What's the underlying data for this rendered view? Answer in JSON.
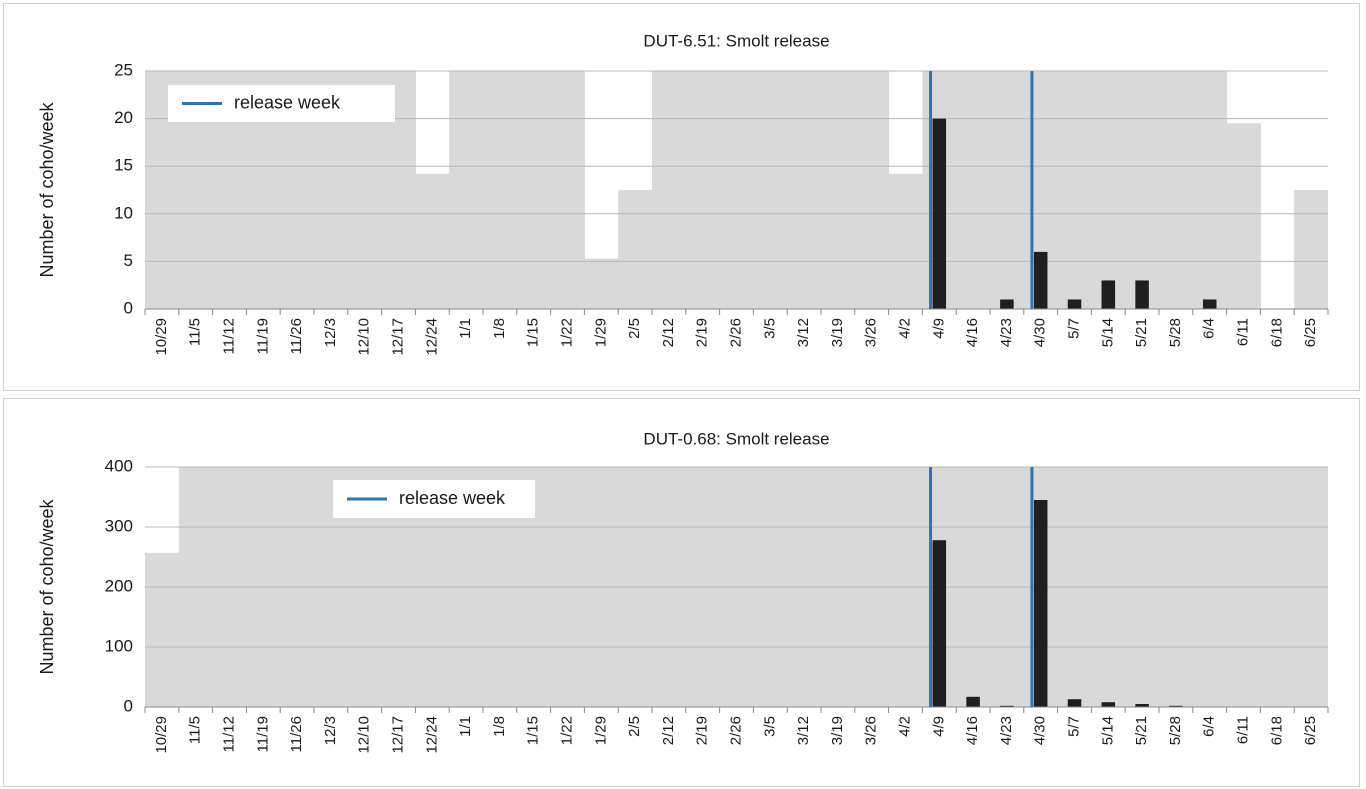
{
  "chart_data": [
    {
      "type": "bar",
      "title": "DUT-6.51: Smolt release",
      "y_label": "Number of coho/week",
      "categories": [
        "10/29",
        "11/5",
        "11/12",
        "11/19",
        "11/26",
        "12/3",
        "12/10",
        "12/17",
        "12/24",
        "1/1",
        "1/8",
        "1/15",
        "1/22",
        "1/29",
        "2/5",
        "2/12",
        "2/19",
        "2/26",
        "3/5",
        "3/12",
        "3/19",
        "3/26",
        "4/2",
        "4/9",
        "4/16",
        "4/23",
        "4/30",
        "5/7",
        "5/14",
        "5/21",
        "5/28",
        "6/4",
        "6/11",
        "6/18",
        "6/25"
      ],
      "series": [
        {
          "color": "#d9d9d9",
          "values": [
            25,
            25,
            25,
            25,
            25,
            25,
            25,
            25,
            14.2,
            25,
            25,
            25,
            25,
            5.3,
            12.5,
            25,
            25,
            25,
            25,
            25,
            25,
            25,
            14.2,
            25,
            25,
            25,
            25,
            25,
            25,
            25,
            25,
            25,
            19.5,
            0,
            12.5
          ]
        },
        {
          "color": "#1f1f1f",
          "values": [
            0,
            0,
            0,
            0,
            0,
            0,
            0,
            0,
            0,
            0,
            0,
            0,
            0,
            0,
            0,
            0,
            0,
            0,
            0,
            0,
            0,
            0,
            0,
            20,
            0,
            1,
            6,
            1,
            3,
            3,
            0,
            1,
            0,
            0,
            0
          ]
        }
      ],
      "release_line": {
        "name": "release week",
        "color": "#2e75b6",
        "categories": [
          "4/9",
          "4/30"
        ]
      },
      "ylim": [
        0,
        25
      ],
      "yticks": [
        0,
        5,
        10,
        15,
        20,
        25
      ],
      "grid": true,
      "legend": "upper left"
    },
    {
      "type": "bar",
      "title": "DUT-0.68: Smolt release",
      "y_label": "Number of coho/week",
      "categories": [
        "10/29",
        "11/5",
        "11/12",
        "11/19",
        "11/26",
        "12/3",
        "12/10",
        "12/17",
        "12/24",
        "1/1",
        "1/8",
        "1/15",
        "1/22",
        "1/29",
        "2/5",
        "2/12",
        "2/19",
        "2/26",
        "3/5",
        "3/12",
        "3/19",
        "3/26",
        "4/2",
        "4/9",
        "4/16",
        "4/23",
        "4/30",
        "5/7",
        "5/14",
        "5/21",
        "5/28",
        "6/4",
        "6/11",
        "6/18",
        "6/25"
      ],
      "series": [
        {
          "color": "#d9d9d9",
          "values": [
            257,
            400,
            400,
            400,
            400,
            400,
            400,
            400,
            400,
            400,
            400,
            400,
            400,
            400,
            400,
            400,
            400,
            400,
            400,
            400,
            400,
            400,
            400,
            400,
            400,
            400,
            400,
            400,
            400,
            400,
            400,
            400,
            400,
            400,
            400
          ]
        },
        {
          "color": "#1f1f1f",
          "values": [
            0,
            0,
            0,
            0,
            0,
            0,
            0,
            0,
            0,
            0,
            0,
            0,
            0,
            0,
            0,
            0,
            0,
            0,
            0,
            0,
            0,
            0,
            0,
            278,
            17,
            2,
            345,
            13,
            8,
            5,
            2,
            0,
            0,
            0,
            0
          ]
        }
      ],
      "release_line": {
        "name": "release week",
        "color": "#2e75b6",
        "categories": [
          "4/9",
          "4/30"
        ]
      },
      "ylim": [
        0,
        400
      ],
      "yticks": [
        0,
        100,
        200,
        300,
        400
      ],
      "grid": true,
      "legend": "upper left"
    }
  ]
}
